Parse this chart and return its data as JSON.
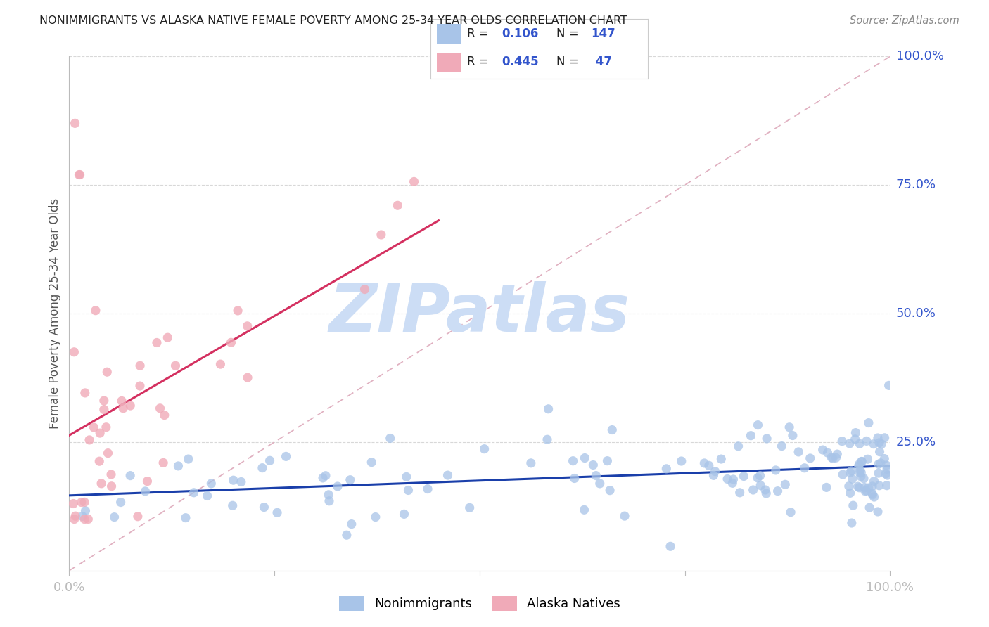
{
  "title": "NONIMMIGRANTS VS ALASKA NATIVE FEMALE POVERTY AMONG 25-34 YEAR OLDS CORRELATION CHART",
  "source": "Source: ZipAtlas.com",
  "ylabel": "Female Poverty Among 25-34 Year Olds",
  "y_tick_labels": [
    "100.0%",
    "75.0%",
    "50.0%",
    "25.0%"
  ],
  "y_tick_values": [
    1.0,
    0.75,
    0.5,
    0.25
  ],
  "blue_R": 0.106,
  "blue_N": 147,
  "pink_R": 0.445,
  "pink_N": 47,
  "blue_color": "#a8c4e8",
  "pink_color": "#f0aab8",
  "blue_line_color": "#1a3faa",
  "pink_line_color": "#d43060",
  "diagonal_color": "#e0b0c0",
  "background_color": "#ffffff",
  "grid_color": "#d8d8d8",
  "watermark_text": "ZIPatlas",
  "watermark_color": "#ccddf5",
  "title_color": "#222222",
  "axis_label_color": "#3355cc",
  "source_color": "#888888",
  "legend_text_color": "#222222",
  "legend_value_color": "#3355cc"
}
